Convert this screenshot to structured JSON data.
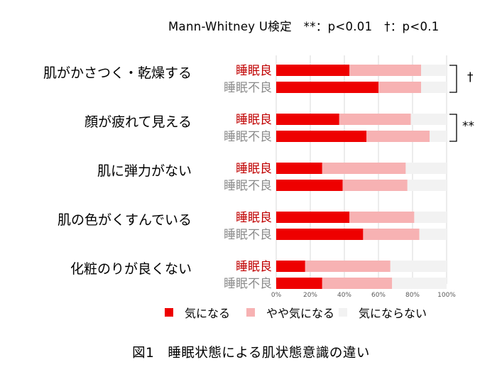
{
  "note": "Mann-Whitney U検定　**：p<0.01　†：p<0.1",
  "caption": "図1　睡眠状態による肌状態意識の違い",
  "colors": {
    "series": [
      "#ee0000",
      "#f7b2b3",
      "#f2f2f2"
    ],
    "label_good": "#c00000",
    "label_poor": "#8c8c8c",
    "grid": "#d9d9d9"
  },
  "chart_data": {
    "type": "bar",
    "orientation": "horizontal",
    "stacked": true,
    "categories": [
      "肌がかさつく・乾燥する",
      "顔が疲れて見える",
      "肌に弾力がない",
      "肌の色がくすんでいる",
      "化粧のりが良くない"
    ],
    "groups": [
      "睡眠良",
      "睡眠不良"
    ],
    "series": [
      {
        "name": "気になる",
        "values": [
          [
            43,
            60
          ],
          [
            37,
            53
          ],
          [
            27,
            39
          ],
          [
            43,
            51
          ],
          [
            17,
            27
          ]
        ]
      },
      {
        "name": "やや気になる",
        "values": [
          [
            42,
            25
          ],
          [
            42,
            37
          ],
          [
            49,
            38
          ],
          [
            38,
            33
          ],
          [
            50,
            41
          ]
        ]
      },
      {
        "name": "気にならない",
        "values": [
          [
            15,
            15
          ],
          [
            21,
            10
          ],
          [
            24,
            23
          ],
          [
            19,
            16
          ],
          [
            33,
            32
          ]
        ]
      }
    ],
    "xlim": [
      0,
      100
    ],
    "xticks": [
      "0%",
      "20%",
      "40%",
      "60%",
      "80%",
      "100%"
    ],
    "grid": true,
    "legend": "bottom",
    "significance": [
      "†",
      "**",
      "",
      "",
      ""
    ]
  }
}
